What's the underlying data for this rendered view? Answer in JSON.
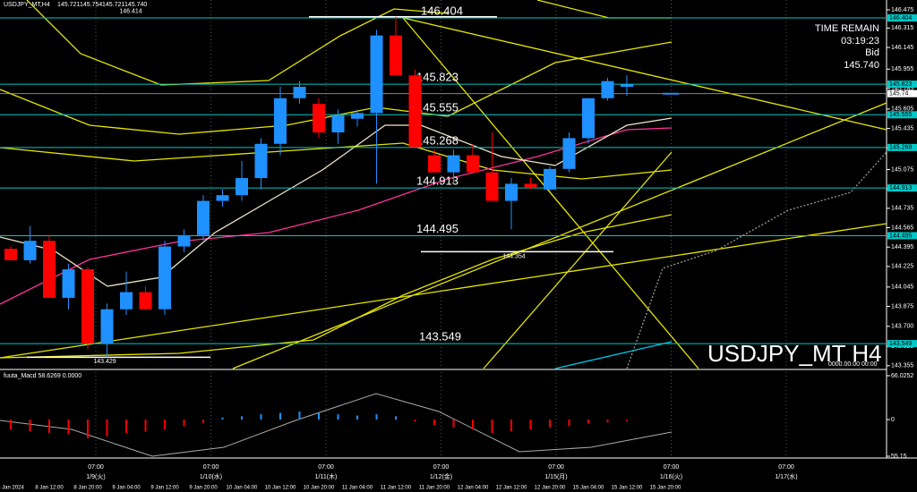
{
  "header": {
    "symbol": "USDJPY_MT,H4",
    "open": "145.721",
    "high": "145.754",
    "low": "145.721",
    "close": "145.740"
  },
  "info": {
    "time_label": "TIME REMAIN",
    "time": "03:19:23",
    "bid_label": "Bid",
    "bid": "145.740"
  },
  "watermark": "USDJPY_MT H4",
  "chart_data": [
    {
      "type": "candlestick",
      "categories": [
        "8 Jan 2024",
        null,
        "8 Jan 12:00",
        null,
        "8 Jan 20:00",
        null,
        "9 Jan 04:00",
        null,
        "9 Jan 12:00",
        null,
        "9 Jan 20:00",
        null,
        "10 Jan 04:00",
        null,
        "10 Jan 12:00",
        null,
        "10 Jan 20:00",
        null,
        "11 Jan 04:00",
        null,
        "11 Jan 12:00",
        null,
        "11 Jan 20:00",
        null,
        "12 Jan 04:00",
        null,
        "12 Jan 12:00",
        null,
        "12 Jan 20:00",
        null,
        "15 Jan 04:00",
        null,
        "15 Jan 12:00",
        null,
        "15 Jan 20:00"
      ],
      "open": [
        144.38,
        144.28,
        144.45,
        143.95,
        144.2,
        143.55,
        143.85,
        144.0,
        143.85,
        144.4,
        144.5,
        144.8,
        144.85,
        145.0,
        145.3,
        145.7,
        145.65,
        145.4,
        145.52,
        145.57,
        146.25,
        145.9,
        145.2,
        145.05,
        145.2,
        145.05,
        144.8,
        144.95,
        144.9,
        145.08,
        145.35,
        145.7,
        145.8,
        null,
        null
      ],
      "high": [
        144.4,
        144.58,
        144.5,
        144.25,
        144.22,
        143.9,
        144.18,
        144.05,
        144.45,
        144.55,
        144.85,
        144.9,
        145.15,
        145.35,
        145.8,
        145.85,
        145.7,
        145.6,
        145.6,
        146.3,
        146.414,
        145.95,
        145.25,
        145.25,
        145.3,
        145.4,
        145.0,
        145.0,
        145.1,
        145.4,
        145.7,
        145.88,
        145.9,
        null,
        null
      ],
      "low": [
        144.28,
        144.25,
        143.95,
        143.85,
        143.5,
        143.429,
        143.8,
        143.85,
        143.8,
        144.35,
        144.45,
        144.75,
        144.8,
        144.9,
        145.2,
        145.65,
        145.35,
        145.3,
        145.45,
        144.95,
        145.9,
        145.27,
        145.05,
        144.95,
        145.05,
        144.8,
        144.55,
        144.9,
        144.88,
        145.05,
        145.3,
        145.68,
        145.72,
        null,
        null
      ],
      "close": [
        144.28,
        144.45,
        143.95,
        144.2,
        143.55,
        143.85,
        144.0,
        143.85,
        144.4,
        144.5,
        144.8,
        144.85,
        145.0,
        145.3,
        145.7,
        145.8,
        145.4,
        145.55,
        145.57,
        146.25,
        145.9,
        145.27,
        145.05,
        145.2,
        145.05,
        144.8,
        144.95,
        144.92,
        145.08,
        145.35,
        145.7,
        145.85,
        145.82,
        null,
        null
      ],
      "up_color": "#1e90ff",
      "down_color": "#ff0000",
      "ylim": [
        143.33,
        146.561
      ],
      "yticks": [
        146.475,
        146.315,
        146.145,
        145.955,
        145.785,
        145.605,
        145.435,
        145.265,
        145.075,
        144.905,
        144.735,
        144.565,
        144.395,
        144.225,
        144.045,
        143.875,
        {
          "value": 143.7,
          "label": "143.700"
        },
        143.525,
        143.355
      ],
      "levels": [
        146.404,
        145.823,
        145.555,
        145.268,
        144.913,
        144.495,
        143.549
      ],
      "level_color": "#00c8c8",
      "markers": [
        146.414,
        144.354,
        143.429
      ],
      "bid": 145.74,
      "date_labels": [
        {
          "time": "07:00",
          "date": "1/9(火)"
        },
        {
          "time": "07:00",
          "date": "1/10(水)"
        },
        {
          "time": "07:00",
          "date": "1/11(木)"
        },
        {
          "time": "07:00",
          "date": "1/12(金)"
        },
        {
          "time": "07:00",
          "date": "1/15(月)"
        },
        {
          "time": "07:00",
          "date": "1/16(火)"
        },
        {
          "time": "07:00",
          "date": "1/17(水)"
        }
      ],
      "time_stamp": "0000.00.00 00:00"
    },
    {
      "type": "histogram",
      "title": "fuuta_Macd 58.6269 0.0000",
      "values": [
        -15,
        -18,
        -20,
        -22,
        -28,
        -25,
        -20,
        -18,
        -15,
        -10,
        -5,
        3,
        5,
        8,
        10,
        12,
        10,
        8,
        6,
        8,
        5,
        -3,
        -8,
        -12,
        -15,
        -20,
        -18,
        -15,
        -12,
        -10,
        -6,
        -4,
        -2,
        null,
        null
      ],
      "up_color": "#1e90ff",
      "down_color": "#ff0000",
      "ylim": [
        -55.15,
        66.0252
      ],
      "yticks": [
        66.0252,
        0,
        {
          "value": -55.15,
          "label": "55.15"
        }
      ]
    }
  ]
}
